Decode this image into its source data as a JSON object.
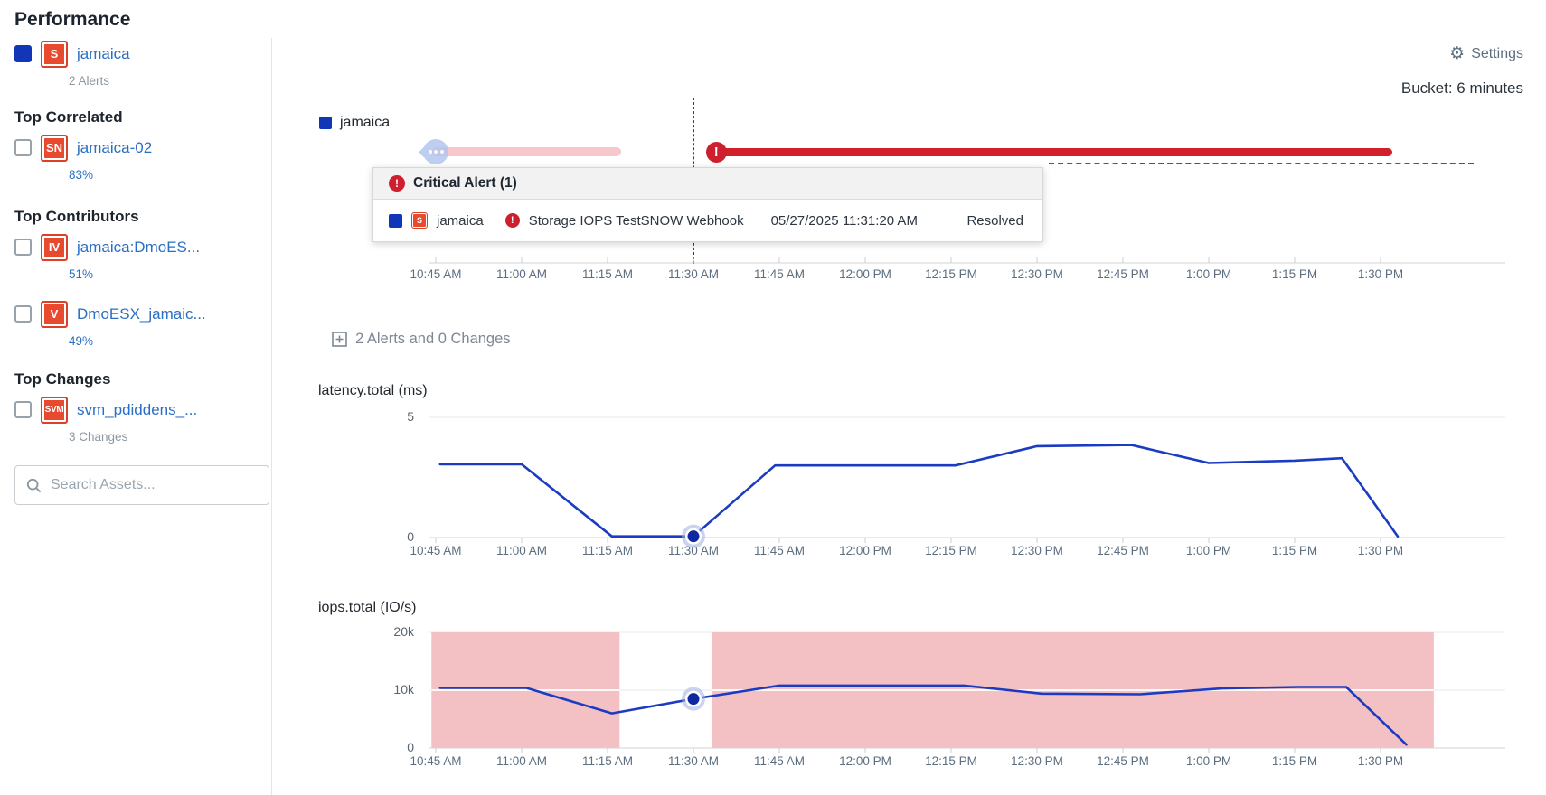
{
  "sidebar": {
    "title": "Performance",
    "main_asset": {
      "name": "jamaica",
      "badge": "S",
      "sub": "2 Alerts",
      "checked": true
    },
    "sections": [
      {
        "heading": "Top Correlated",
        "items": [
          {
            "name": "jamaica-02",
            "badge": "SN",
            "sub": "83%"
          }
        ]
      },
      {
        "heading": "Top Contributors",
        "items": [
          {
            "name": "jamaica:DmoES...",
            "badge": "IV",
            "sub": "51%"
          },
          {
            "name": "DmoESX_jamaic...",
            "badge": "V",
            "sub": "49%"
          }
        ]
      },
      {
        "heading": "Top Changes",
        "items": [
          {
            "name": "svm_pdiddens_...",
            "badge": "SVM",
            "sub": "3 Changes"
          }
        ]
      }
    ],
    "search_placeholder": "Search Assets..."
  },
  "header": {
    "settings_label": "Settings",
    "bucket_label": "Bucket: 6 minutes"
  },
  "timeline": {
    "tooltip": {
      "header": "Critical Alert (1)",
      "row": {
        "asset": "jamaica",
        "asset_badge": "S",
        "alert_name": "Storage IOPS TestSNOW Webhook",
        "time": "05/27/2025 11:31:20 AM",
        "status": "Resolved"
      }
    }
  },
  "alerts_summary": "2 Alerts and 0 Changes",
  "time_axis": [
    "10:45 AM",
    "11:00 AM",
    "11:15 AM",
    "11:30 AM",
    "11:45 AM",
    "12:00 PM",
    "12:15 PM",
    "12:30 PM",
    "12:45 PM",
    "1:00 PM",
    "1:15 PM",
    "1:30 PM"
  ],
  "colors": {
    "series_line": "#1b3cc2",
    "highlight_dot": "#10289f",
    "halo": "rgba(160,176,226,0.55)",
    "band_pink": "#f3c0c3",
    "resolved_pink": "#f6c7cb",
    "alert_red": "#d2202a",
    "link_blue": "#2a6fc4",
    "badge_red": "#e84a30",
    "cluster_blue": "#b3c6ef",
    "series_swatch": "#1136b8"
  },
  "chart_data": [
    {
      "id": "alert-timeline",
      "type": "timeline",
      "series_name": "jamaica",
      "cursor_time": "11:30 AM",
      "cursor_t": 3,
      "resolved_band": {
        "from_t": -0.04,
        "to_t": 2.16,
        "marker": "more-alerts-cluster"
      },
      "critical_band": {
        "from_t": 3.33,
        "to_t": 11.14,
        "marker": "critical-alert"
      },
      "marker_t": 3.26,
      "guide_dash": {
        "from_t": 7.14,
        "to_t": 12.08
      }
    },
    {
      "id": "latency",
      "type": "line",
      "title": "latency.total (ms)",
      "ylabel": "ms",
      "ylim": [
        0,
        5
      ],
      "y_ticks": [
        {
          "v": 5,
          "label": "5"
        },
        {
          "v": 0,
          "label": "0"
        }
      ],
      "x_tick_unit": "15 minutes",
      "points": [
        [
          0.05,
          3.05
        ],
        [
          1,
          3.05
        ],
        [
          2.05,
          0.05
        ],
        [
          3,
          0.05
        ],
        [
          3.95,
          3.0
        ],
        [
          6.05,
          3.0
        ],
        [
          7,
          3.8
        ],
        [
          8.1,
          3.85
        ],
        [
          9,
          3.1
        ],
        [
          10,
          3.2
        ],
        [
          10.55,
          3.3
        ],
        [
          11.2,
          0.05
        ]
      ],
      "highlight": {
        "t": 3,
        "v": 0.05,
        "time": "11:30 AM"
      }
    },
    {
      "id": "iops",
      "type": "line",
      "title": "iops.total (IO/s)",
      "ylabel": "IO/s",
      "ylim": [
        0,
        20000
      ],
      "y_ticks": [
        {
          "v": 20000,
          "label": "20k"
        },
        {
          "v": 10000,
          "label": "10k"
        },
        {
          "v": 0,
          "label": "0"
        }
      ],
      "x_tick_unit": "15 minutes",
      "points": [
        [
          0.05,
          10400
        ],
        [
          1.05,
          10400
        ],
        [
          2.05,
          6000
        ],
        [
          3,
          8500
        ],
        [
          4,
          10800
        ],
        [
          6.15,
          10800
        ],
        [
          7.05,
          9400
        ],
        [
          8.2,
          9300
        ],
        [
          9.15,
          10300
        ],
        [
          10.05,
          10550
        ],
        [
          10.6,
          10550
        ],
        [
          11.3,
          600
        ]
      ],
      "highlight": {
        "t": 3,
        "v": 8500,
        "time": "11:30 AM"
      },
      "bands": [
        {
          "from": -0.05,
          "to": 2.14
        },
        {
          "from": 3.21,
          "to": 11.62
        }
      ],
      "band_overlay_gridline": 10000
    }
  ]
}
